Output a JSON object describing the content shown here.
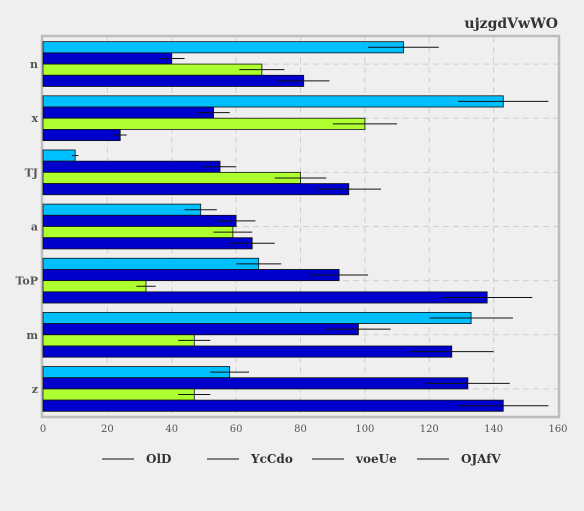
{
  "chart_data": {
    "type": "bar",
    "orientation": "horizontal",
    "title": "ujzgdVwWO",
    "xlabel": "",
    "ylabel": "",
    "xlim": [
      0,
      160
    ],
    "x_ticks": [
      0,
      20,
      40,
      60,
      80,
      100,
      120,
      140,
      160
    ],
    "grid": true,
    "legend_position": "bottom",
    "categories": [
      "n",
      "x",
      "TJ",
      "a",
      "ToP",
      "m",
      "z"
    ],
    "series": [
      {
        "name": "OlD",
        "color": "#00bfff",
        "values": [
          112,
          143,
          10,
          49,
          67,
          133,
          58
        ],
        "errors": [
          11,
          14,
          1,
          5,
          7,
          13,
          6
        ]
      },
      {
        "name": "YcCdo",
        "color": "#0000cd",
        "values": [
          40,
          53,
          55,
          60,
          92,
          98,
          132
        ],
        "errors": [
          4,
          5,
          5,
          6,
          9,
          10,
          13
        ]
      },
      {
        "name": "voeUe",
        "color": "#adff2f",
        "values": [
          68,
          100,
          80,
          59,
          32,
          47,
          47
        ],
        "errors": [
          7,
          10,
          8,
          6,
          3,
          5,
          5
        ]
      },
      {
        "name": "OJAfV",
        "color": "#0000cd",
        "values": [
          81,
          24,
          95,
          65,
          138,
          127,
          143
        ],
        "errors": [
          8,
          2,
          10,
          7,
          14,
          13,
          14
        ]
      }
    ]
  }
}
